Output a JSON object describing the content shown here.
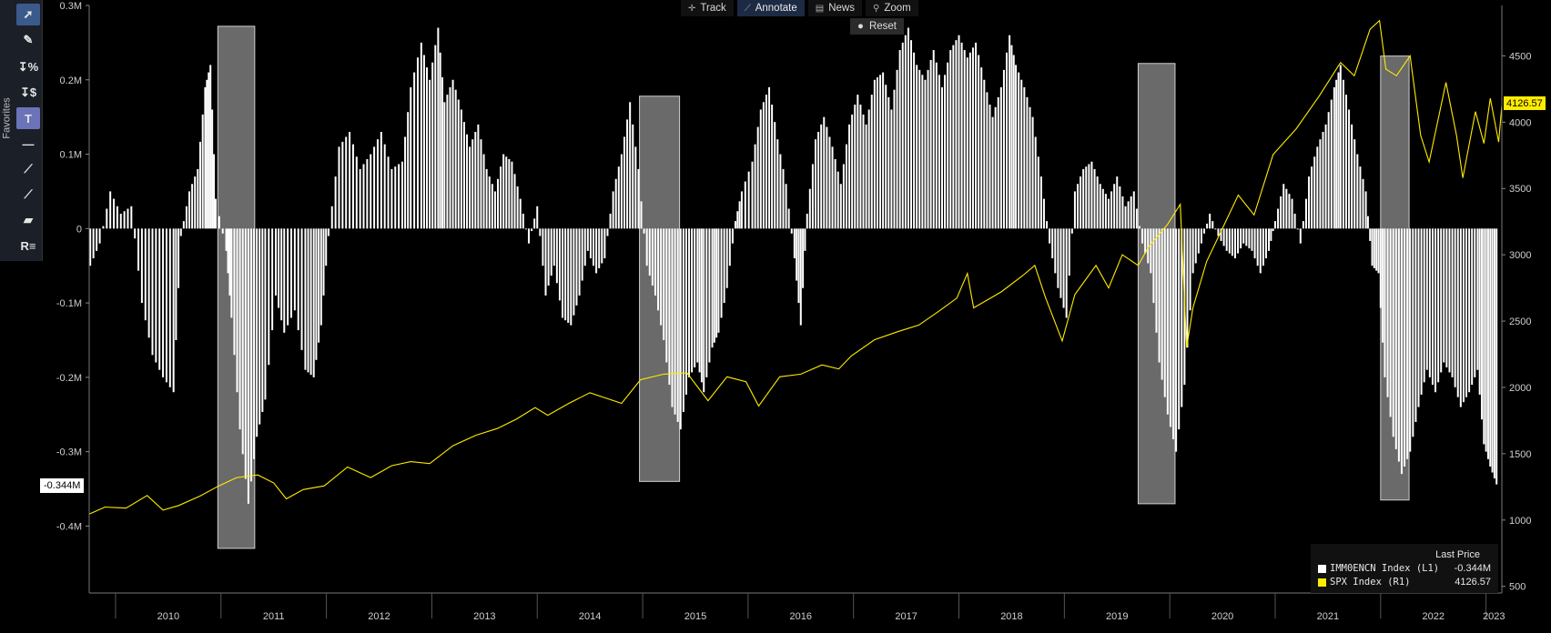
{
  "toolbar": {
    "tools": [
      {
        "name": "cursor-arrow-icon",
        "glyph": "➚"
      },
      {
        "name": "pencil-draw-icon",
        "glyph": "✎"
      },
      {
        "name": "percent-tool-icon",
        "glyph": "↧%"
      },
      {
        "name": "dollar-tool-icon",
        "glyph": "↧$"
      },
      {
        "name": "text-tool-icon",
        "glyph": "T"
      },
      {
        "name": "horizontal-line-icon",
        "glyph": "—"
      },
      {
        "name": "trend-line-icon",
        "glyph": "⟋"
      },
      {
        "name": "ray-line-icon",
        "glyph": "⟋"
      },
      {
        "name": "channel-tool-icon",
        "glyph": "▰"
      },
      {
        "name": "r-tool-icon",
        "glyph": "R≡"
      }
    ],
    "favorites_label": "Favorites"
  },
  "topbar": {
    "track": "Track",
    "annotate": "Annotate",
    "news": "News",
    "zoom": "Zoom",
    "reset": "Reset"
  },
  "legend": {
    "title": "Last Price",
    "series": [
      {
        "name": "IMM0ENCN Index  (L1)",
        "value": "-0.344M",
        "color": "#ffffff"
      },
      {
        "name": "SPX Index  (R1)",
        "value": "4126.57",
        "color": "#ffec00"
      }
    ]
  },
  "tags": {
    "left_value": "-0.344M",
    "right_value": "4126.57"
  },
  "colors": {
    "bars": "#ffffff",
    "line": "#ffec00",
    "shade": "#6a6a6a",
    "background": "#000000"
  },
  "chart_data": {
    "type": "bar",
    "x_range": [
      2009.75,
      2023.15
    ],
    "x_labels": [
      "2010",
      "2011",
      "2012",
      "2013",
      "2014",
      "2015",
      "2016",
      "2017",
      "2018",
      "2019",
      "2020",
      "2021",
      "2022",
      "2023"
    ],
    "left_axis": {
      "ticks": [
        "0.3M",
        "0.2M",
        "0.1M",
        "0",
        "-0.1M",
        "-0.2M",
        "-0.3M",
        "-0.4M"
      ],
      "ylim": [
        -0.49,
        0.3
      ]
    },
    "right_axis": {
      "ticks": [
        "4500",
        "4000",
        "3500",
        "3000",
        "2500",
        "2000",
        "1500",
        "1000",
        "500"
      ],
      "ylim": [
        450,
        4880
      ]
    },
    "shaded_periods": [
      {
        "start": 2010.97,
        "end": 2011.32,
        "low": -0.43,
        "high": 0.272
      },
      {
        "start": 2014.97,
        "end": 2015.35,
        "low": -0.34,
        "high": 0.178
      },
      {
        "start": 2019.7,
        "end": 2020.05,
        "low": -0.37,
        "high": 0.222
      },
      {
        "start": 2022.0,
        "end": 2022.27,
        "low": -0.365,
        "high": 0.232
      }
    ],
    "series": [
      {
        "name": "IMM0ENCN Index",
        "axis": "left",
        "style": "bars",
        "points": [
          [
            2009.76,
            -0.05
          ],
          [
            2009.85,
            -0.02
          ],
          [
            2009.95,
            0.05
          ],
          [
            2010.05,
            0.02
          ],
          [
            2010.15,
            0.03
          ],
          [
            2010.25,
            -0.1
          ],
          [
            2010.35,
            -0.17
          ],
          [
            2010.45,
            -0.2
          ],
          [
            2010.55,
            -0.22
          ],
          [
            2010.62,
            -0.01
          ],
          [
            2010.7,
            0.05
          ],
          [
            2010.78,
            0.08
          ],
          [
            2010.85,
            0.19
          ],
          [
            2010.9,
            0.22
          ],
          [
            2010.95,
            0.04
          ],
          [
            2011.05,
            -0.03
          ],
          [
            2011.1,
            -0.12
          ],
          [
            2011.18,
            -0.27
          ],
          [
            2011.26,
            -0.37
          ],
          [
            2011.34,
            -0.28
          ],
          [
            2011.42,
            -0.23
          ],
          [
            2011.52,
            -0.09
          ],
          [
            2011.6,
            -0.14
          ],
          [
            2011.7,
            -0.11
          ],
          [
            2011.8,
            -0.19
          ],
          [
            2011.88,
            -0.2
          ],
          [
            2011.95,
            -0.13
          ],
          [
            2012.02,
            -0.01
          ],
          [
            2012.12,
            0.11
          ],
          [
            2012.22,
            0.13
          ],
          [
            2012.32,
            0.08
          ],
          [
            2012.42,
            0.1
          ],
          [
            2012.52,
            0.13
          ],
          [
            2012.62,
            0.08
          ],
          [
            2012.72,
            0.09
          ],
          [
            2012.8,
            0.19
          ],
          [
            2012.9,
            0.25
          ],
          [
            2012.98,
            0.2
          ],
          [
            2013.06,
            0.27
          ],
          [
            2013.12,
            0.17
          ],
          [
            2013.2,
            0.2
          ],
          [
            2013.28,
            0.16
          ],
          [
            2013.36,
            0.11
          ],
          [
            2013.44,
            0.14
          ],
          [
            2013.52,
            0.08
          ],
          [
            2013.6,
            0.05
          ],
          [
            2013.68,
            0.1
          ],
          [
            2013.76,
            0.09
          ],
          [
            2013.84,
            0.04
          ],
          [
            2013.92,
            -0.02
          ],
          [
            2014.0,
            0.03
          ],
          [
            2014.08,
            -0.09
          ],
          [
            2014.16,
            -0.05
          ],
          [
            2014.24,
            -0.12
          ],
          [
            2014.32,
            -0.13
          ],
          [
            2014.4,
            -0.09
          ],
          [
            2014.48,
            -0.03
          ],
          [
            2014.56,
            -0.06
          ],
          [
            2014.64,
            -0.04
          ],
          [
            2014.72,
            0.05
          ],
          [
            2014.8,
            0.1
          ],
          [
            2014.88,
            0.17
          ],
          [
            2014.96,
            0.08
          ],
          [
            2015.04,
            -0.05
          ],
          [
            2015.12,
            -0.09
          ],
          [
            2015.2,
            -0.15
          ],
          [
            2015.28,
            -0.24
          ],
          [
            2015.36,
            -0.27
          ],
          [
            2015.44,
            -0.2
          ],
          [
            2015.52,
            -0.18
          ],
          [
            2015.58,
            -0.22
          ],
          [
            2015.66,
            -0.16
          ],
          [
            2015.72,
            -0.14
          ],
          [
            2015.8,
            -0.08
          ],
          [
            2015.88,
            0.01
          ],
          [
            2015.94,
            0.05
          ],
          [
            2016.04,
            0.09
          ],
          [
            2016.12,
            0.16
          ],
          [
            2016.2,
            0.19
          ],
          [
            2016.28,
            0.12
          ],
          [
            2016.36,
            0.06
          ],
          [
            2016.44,
            -0.04
          ],
          [
            2016.5,
            -0.13
          ],
          [
            2016.56,
            0.02
          ],
          [
            2016.64,
            0.12
          ],
          [
            2016.72,
            0.15
          ],
          [
            2016.8,
            0.11
          ],
          [
            2016.88,
            0.06
          ],
          [
            2016.96,
            0.14
          ],
          [
            2017.04,
            0.18
          ],
          [
            2017.12,
            0.14
          ],
          [
            2017.2,
            0.2
          ],
          [
            2017.28,
            0.21
          ],
          [
            2017.36,
            0.16
          ],
          [
            2017.44,
            0.24
          ],
          [
            2017.52,
            0.27
          ],
          [
            2017.6,
            0.22
          ],
          [
            2017.68,
            0.2
          ],
          [
            2017.76,
            0.24
          ],
          [
            2017.84,
            0.19
          ],
          [
            2017.92,
            0.24
          ],
          [
            2018.0,
            0.26
          ],
          [
            2018.08,
            0.23
          ],
          [
            2018.16,
            0.25
          ],
          [
            2018.24,
            0.2
          ],
          [
            2018.32,
            0.15
          ],
          [
            2018.4,
            0.19
          ],
          [
            2018.48,
            0.26
          ],
          [
            2018.54,
            0.22
          ],
          [
            2018.62,
            0.19
          ],
          [
            2018.7,
            0.15
          ],
          [
            2018.78,
            0.07
          ],
          [
            2018.86,
            -0.02
          ],
          [
            2018.94,
            -0.08
          ],
          [
            2019.02,
            -0.12
          ],
          [
            2019.1,
            0.05
          ],
          [
            2019.18,
            0.08
          ],
          [
            2019.26,
            0.09
          ],
          [
            2019.34,
            0.06
          ],
          [
            2019.42,
            0.04
          ],
          [
            2019.5,
            0.07
          ],
          [
            2019.58,
            0.03
          ],
          [
            2019.66,
            0.05
          ],
          [
            2019.74,
            -0.02
          ],
          [
            2019.82,
            -0.06
          ],
          [
            2019.9,
            -0.18
          ],
          [
            2019.98,
            -0.25
          ],
          [
            2020.06,
            -0.3
          ],
          [
            2020.14,
            -0.21
          ],
          [
            2020.22,
            -0.06
          ],
          [
            2020.3,
            -0.02
          ],
          [
            2020.38,
            0.02
          ],
          [
            2020.46,
            -0.01
          ],
          [
            2020.54,
            -0.03
          ],
          [
            2020.62,
            -0.04
          ],
          [
            2020.7,
            -0.02
          ],
          [
            2020.78,
            -0.03
          ],
          [
            2020.86,
            -0.06
          ],
          [
            2020.94,
            -0.03
          ],
          [
            2021.0,
            0.01
          ],
          [
            2021.08,
            0.06
          ],
          [
            2021.16,
            0.04
          ],
          [
            2021.24,
            -0.02
          ],
          [
            2021.32,
            0.07
          ],
          [
            2021.4,
            0.11
          ],
          [
            2021.48,
            0.14
          ],
          [
            2021.56,
            0.19
          ],
          [
            2021.62,
            0.22
          ],
          [
            2021.7,
            0.16
          ],
          [
            2021.78,
            0.1
          ],
          [
            2021.86,
            0.05
          ],
          [
            2021.92,
            -0.05
          ],
          [
            2021.98,
            -0.06
          ],
          [
            2022.04,
            -0.2
          ],
          [
            2022.12,
            -0.28
          ],
          [
            2022.2,
            -0.33
          ],
          [
            2022.28,
            -0.3
          ],
          [
            2022.36,
            -0.24
          ],
          [
            2022.44,
            -0.19
          ],
          [
            2022.52,
            -0.22
          ],
          [
            2022.6,
            -0.18
          ],
          [
            2022.68,
            -0.2
          ],
          [
            2022.76,
            -0.24
          ],
          [
            2022.84,
            -0.22
          ],
          [
            2022.92,
            -0.19
          ],
          [
            2022.98,
            -0.29
          ],
          [
            2023.04,
            -0.32
          ],
          [
            2023.1,
            -0.344
          ]
        ]
      },
      {
        "name": "SPX Index",
        "axis": "right",
        "style": "line",
        "points": [
          [
            2009.75,
            1045
          ],
          [
            2009.9,
            1098
          ],
          [
            2010.1,
            1090
          ],
          [
            2010.3,
            1185
          ],
          [
            2010.45,
            1075
          ],
          [
            2010.6,
            1110
          ],
          [
            2010.8,
            1180
          ],
          [
            2010.98,
            1258
          ],
          [
            2011.15,
            1320
          ],
          [
            2011.35,
            1340
          ],
          [
            2011.5,
            1280
          ],
          [
            2011.62,
            1160
          ],
          [
            2011.78,
            1230
          ],
          [
            2011.98,
            1258
          ],
          [
            2012.2,
            1400
          ],
          [
            2012.42,
            1320
          ],
          [
            2012.62,
            1410
          ],
          [
            2012.8,
            1440
          ],
          [
            2012.98,
            1426
          ],
          [
            2013.2,
            1560
          ],
          [
            2013.42,
            1640
          ],
          [
            2013.62,
            1690
          ],
          [
            2013.8,
            1760
          ],
          [
            2013.98,
            1848
          ],
          [
            2014.1,
            1790
          ],
          [
            2014.3,
            1880
          ],
          [
            2014.5,
            1960
          ],
          [
            2014.8,
            1880
          ],
          [
            2014.98,
            2058
          ],
          [
            2015.2,
            2100
          ],
          [
            2015.42,
            2110
          ],
          [
            2015.62,
            1900
          ],
          [
            2015.8,
            2080
          ],
          [
            2015.98,
            2043
          ],
          [
            2016.1,
            1860
          ],
          [
            2016.3,
            2080
          ],
          [
            2016.5,
            2100
          ],
          [
            2016.7,
            2170
          ],
          [
            2016.86,
            2140
          ],
          [
            2016.98,
            2238
          ],
          [
            2017.2,
            2360
          ],
          [
            2017.42,
            2420
          ],
          [
            2017.62,
            2470
          ],
          [
            2017.8,
            2570
          ],
          [
            2017.98,
            2673
          ],
          [
            2018.08,
            2860
          ],
          [
            2018.14,
            2600
          ],
          [
            2018.4,
            2720
          ],
          [
            2018.6,
            2840
          ],
          [
            2018.72,
            2920
          ],
          [
            2018.82,
            2680
          ],
          [
            2018.98,
            2350
          ],
          [
            2019.1,
            2700
          ],
          [
            2019.3,
            2920
          ],
          [
            2019.42,
            2750
          ],
          [
            2019.55,
            3000
          ],
          [
            2019.7,
            2920
          ],
          [
            2019.8,
            3060
          ],
          [
            2019.98,
            3230
          ],
          [
            2020.1,
            3380
          ],
          [
            2020.16,
            2300
          ],
          [
            2020.22,
            2600
          ],
          [
            2020.35,
            2950
          ],
          [
            2020.5,
            3200
          ],
          [
            2020.65,
            3450
          ],
          [
            2020.8,
            3300
          ],
          [
            2020.98,
            3756
          ],
          [
            2021.2,
            3950
          ],
          [
            2021.42,
            4200
          ],
          [
            2021.62,
            4450
          ],
          [
            2021.75,
            4350
          ],
          [
            2021.9,
            4700
          ],
          [
            2021.99,
            4766
          ],
          [
            2022.05,
            4400
          ],
          [
            2022.15,
            4350
          ],
          [
            2022.28,
            4500
          ],
          [
            2022.38,
            3900
          ],
          [
            2022.46,
            3700
          ],
          [
            2022.62,
            4300
          ],
          [
            2022.72,
            3900
          ],
          [
            2022.78,
            3580
          ],
          [
            2022.9,
            4080
          ],
          [
            2022.98,
            3840
          ],
          [
            2023.04,
            4180
          ],
          [
            2023.12,
            3850
          ],
          [
            2023.15,
            4126.57
          ]
        ]
      }
    ]
  }
}
